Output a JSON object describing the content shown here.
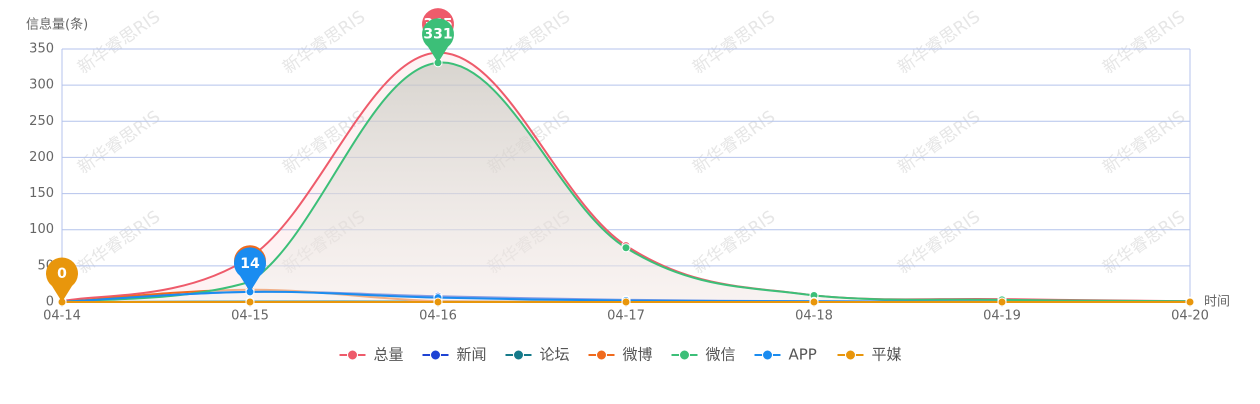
{
  "chart_data": {
    "type": "line",
    "y_axis_label": "信息量(条)",
    "x_axis_label": "时间",
    "watermark": "新华睿思RIS",
    "categories": [
      "04-14",
      "04-15",
      "04-16",
      "04-17",
      "04-18",
      "04-19",
      "04-20"
    ],
    "ylim": [
      0,
      350
    ],
    "yticks": [
      0,
      50,
      100,
      150,
      200,
      250,
      300,
      350
    ],
    "grid": true,
    "smooth": true,
    "legend": "bottom",
    "series": [
      {
        "name": "总量",
        "color": "#ee5b6b",
        "area": true,
        "mark_max": true,
        "values": [
          1,
          62,
          345,
          78,
          9,
          4,
          1
        ]
      },
      {
        "name": "新闻",
        "color": "#1e43d4",
        "values": [
          0,
          14,
          8,
          3,
          1,
          1,
          0
        ]
      },
      {
        "name": "论坛",
        "color": "#157a8a",
        "values": [
          0,
          1,
          1,
          0,
          0,
          0,
          0
        ]
      },
      {
        "name": "微博",
        "color": "#f06a1d",
        "mark_max": true,
        "values": [
          0,
          17,
          1,
          0,
          0,
          0,
          0
        ]
      },
      {
        "name": "微信",
        "color": "#3cbf78",
        "area": true,
        "mark_max": true,
        "values": [
          0,
          28,
          331,
          75,
          9,
          3,
          1
        ]
      },
      {
        "name": "APP",
        "color": "#1a8cf0",
        "mark_max": true,
        "values": [
          0,
          14,
          6,
          2,
          1,
          0,
          0
        ]
      },
      {
        "name": "平媒",
        "color": "#e8960c",
        "mark_max": true,
        "values": [
          0,
          0,
          0,
          0,
          0,
          0,
          0
        ]
      }
    ]
  }
}
